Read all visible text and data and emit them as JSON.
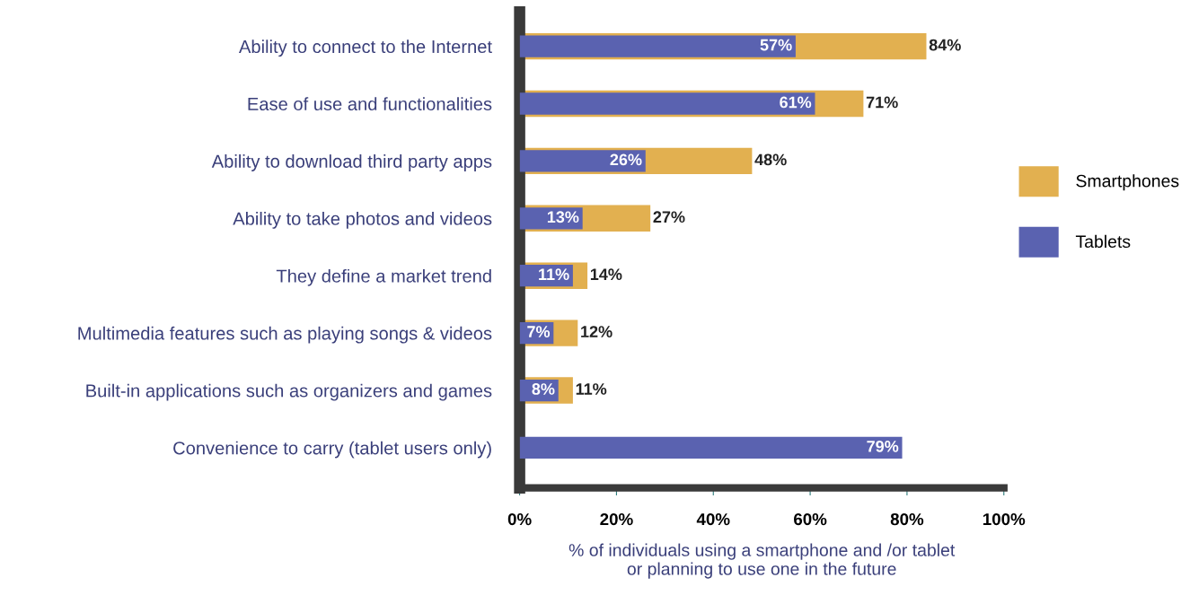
{
  "chart_data": {
    "type": "bar",
    "orientation": "horizontal",
    "categories": [
      "Ability to connect to the Internet",
      "Ease of use and functionalities",
      "Ability to download third party apps",
      "Ability to take photos and videos",
      "They define a market trend",
      "Multimedia features such as playing songs & videos",
      "Built-in applications such as organizers and games",
      "Convenience to carry (tablet users only)"
    ],
    "series": [
      {
        "name": "Smartphones",
        "color": "#e2b050",
        "values": [
          84,
          71,
          48,
          27,
          14,
          12,
          11,
          null
        ],
        "value_labels": [
          "84%",
          "71%",
          "48%",
          "27%",
          "14%",
          "12%",
          "11%",
          null
        ]
      },
      {
        "name": "Tablets",
        "color": "#5a62b0",
        "values": [
          57,
          61,
          26,
          13,
          11,
          7,
          8,
          79
        ],
        "value_labels": [
          "57%",
          "61%",
          "26%",
          "13%",
          "11%",
          "7%",
          "8%",
          "79%"
        ]
      }
    ],
    "xlim": [
      0,
      100
    ],
    "xticks": [
      {
        "value": 0,
        "label": "0%"
      },
      {
        "value": 20,
        "label": "20%"
      },
      {
        "value": 40,
        "label": "40%"
      },
      {
        "value": 60,
        "label": "60%"
      },
      {
        "value": 80,
        "label": "80%"
      },
      {
        "value": 100,
        "label": "100%"
      }
    ],
    "xlabel": "% of individuals using a smartphone and /or tablet\nor planning to use one in the future",
    "legend": "right",
    "grid": false
  }
}
